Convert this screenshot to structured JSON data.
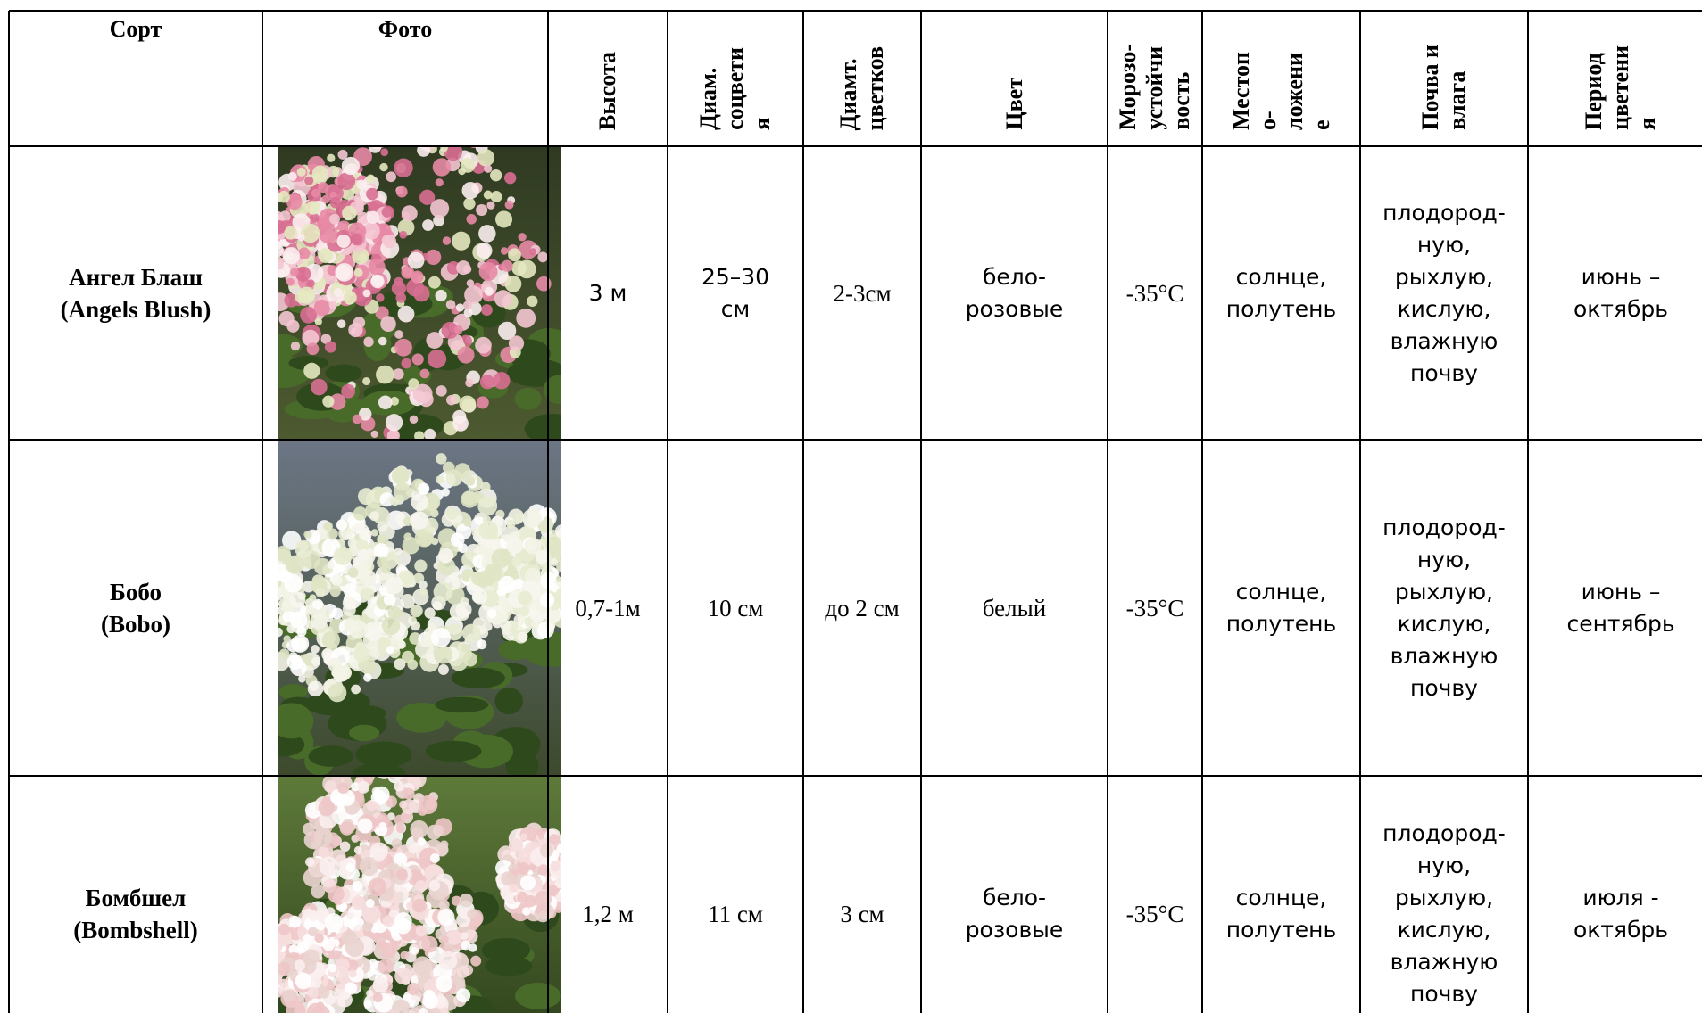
{
  "header": {
    "columns": [
      [
        "Сорт"
      ],
      [
        "Фото"
      ],
      [
        "Высота"
      ],
      [
        "Диам.",
        "соцвети",
        "я"
      ],
      [
        "Диамт.",
        "цветков"
      ],
      [
        "Цвет"
      ],
      [
        "Морозо-",
        "устойчи",
        "вость"
      ],
      [
        "Местоп",
        "о-",
        "ложени",
        "е"
      ],
      [
        "Почва и",
        "влага"
      ],
      [
        "Период",
        "цветени",
        "я"
      ]
    ]
  },
  "rows": [
    {
      "cells": [
        [
          "Ангел Блаш",
          "(Angels Blush)"
        ],
        [
          "3 м"
        ],
        [
          "25–30",
          "см"
        ],
        [
          "2-3см"
        ],
        [
          "бело-",
          "розовые"
        ],
        [
          "-35°C"
        ],
        [
          "солнце,",
          "полутень"
        ],
        [
          "плодород-",
          "ную,",
          "рыхлую,",
          "кислую,",
          "влажную",
          "почву"
        ],
        [
          "июнь –",
          "октябрь"
        ]
      ]
    },
    {
      "cells": [
        [
          "Бобо",
          "(Bobo)"
        ],
        [
          "0,7-1м"
        ],
        [
          "10 см"
        ],
        [
          "до 2 см"
        ],
        [
          "белый"
        ],
        [
          "-35°C"
        ],
        [
          "солнце,",
          "полутень"
        ],
        [
          "плодород-",
          "ную,",
          "рыхлую,",
          "кислую,",
          "влажную",
          "почву"
        ],
        [
          "июнь –",
          "сентябрь"
        ]
      ]
    },
    {
      "cells": [
        [
          "Бомбшел",
          "(Bombshell)"
        ],
        [
          "1,2 м"
        ],
        [
          "11 см"
        ],
        [
          "3 см"
        ],
        [
          "бело-",
          "розовые"
        ],
        [
          "-35°C"
        ],
        [
          "солнце,",
          "полутень"
        ],
        [
          "плодород-",
          "ную,",
          "рыхлую,",
          "кислую,",
          "влажную",
          "почву"
        ],
        [
          "июля -",
          "октябрь"
        ]
      ]
    }
  ]
}
